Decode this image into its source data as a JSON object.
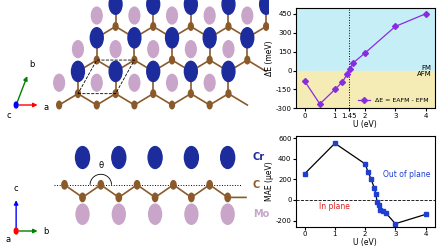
{
  "chart_data": [
    {
      "type": "line",
      "x_label": "U (eV)",
      "y_label": "ΔE (meV)",
      "x": [
        0,
        0.5,
        1,
        1.25,
        1.4,
        1.5,
        1.6,
        2,
        3,
        4
      ],
      "series": [
        {
          "name": "ΔE = EAFM - EFM",
          "color": "#8a2be2",
          "marker": "D",
          "values": [
            -85,
            -265,
            -150,
            -90,
            -30,
            15,
            60,
            140,
            350,
            450
          ]
        }
      ],
      "xlim": [
        -0.3,
        4.3
      ],
      "ylim": [
        -300,
        500
      ],
      "xticks": [
        0,
        1,
        1.45,
        2,
        3,
        4
      ],
      "yticks": [
        -300,
        -150,
        0,
        150,
        300,
        450
      ],
      "vline": 1.45,
      "regions": [
        {
          "label": "FM",
          "range": [
            0,
            500
          ],
          "color": "#c6eef7"
        },
        {
          "label": "AFM",
          "range": [
            -300,
            0
          ],
          "color": "#f4ecb4"
        }
      ],
      "legend": "lower right"
    },
    {
      "type": "line",
      "x_label": "U (eV)",
      "y_label": "MAE (μeV)",
      "x": [
        0,
        1,
        2,
        2.1,
        2.2,
        2.3,
        2.35,
        2.4,
        2.45,
        2.5,
        2.6,
        2.7,
        3,
        4
      ],
      "series": [
        {
          "name": "MAE",
          "color": "#1f3fd0",
          "marker": "s",
          "values": [
            255,
            550,
            350,
            270,
            200,
            120,
            60,
            -20,
            -50,
            -100,
            -110,
            -130,
            -230,
            -140
          ]
        }
      ],
      "xlim": [
        -0.3,
        4.3
      ],
      "ylim": [
        -260,
        620
      ],
      "xticks": [
        0,
        1,
        2,
        3,
        4
      ],
      "yticks": [
        -200,
        0,
        200,
        400,
        600
      ],
      "hline": 0,
      "annotations": [
        {
          "text": "Out of plane",
          "color": "#1f3fd0"
        },
        {
          "text": "In plane",
          "color": "#e02020"
        }
      ]
    }
  ],
  "diagram": {
    "top_view_axes": [
      "a",
      "b",
      "c"
    ],
    "side_view_axes": [
      "a",
      "b",
      "c"
    ],
    "atoms": [
      {
        "label": "Cr",
        "color": "#1c2c9c"
      },
      {
        "label": "C",
        "color": "#8b5a2b"
      },
      {
        "label": "Mo",
        "color": "#c9a6c9"
      }
    ],
    "angle_label": "θ"
  }
}
